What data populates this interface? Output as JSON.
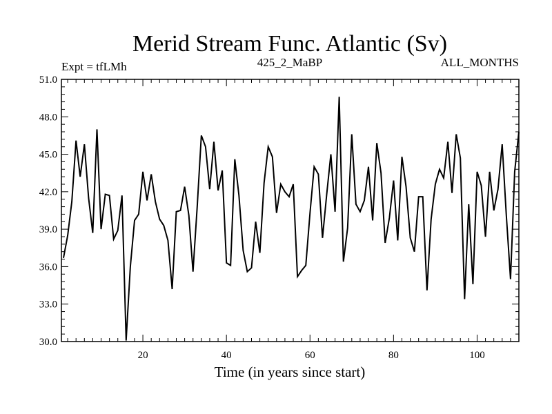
{
  "chart_data": {
    "type": "line",
    "title": "Merid Stream Func. Atlantic (Sv)",
    "subtitle_left": "Expt = tfLMh",
    "subtitle_center": "425_2_MaBP",
    "subtitle_right": "ALL_MONTHS",
    "xlabel": "Time (in years since start)",
    "ylabel": "",
    "xlim": [
      0.5,
      110
    ],
    "ylim": [
      30.0,
      51.0
    ],
    "x_ticks": [
      20,
      40,
      60,
      80,
      100
    ],
    "x_tick_labels": [
      "20",
      "40",
      "60",
      "80",
      "100"
    ],
    "y_ticks": [
      30.0,
      33.0,
      36.0,
      39.0,
      42.0,
      45.0,
      48.0,
      51.0
    ],
    "y_tick_labels": [
      "30.0",
      "33.0",
      "36.0",
      "39.0",
      "42.0",
      "45.0",
      "48.0",
      "51.0"
    ],
    "series": [
      {
        "name": "Merid Stream Func. Atlantic",
        "x": [
          1,
          2,
          3,
          4,
          5,
          6,
          7,
          8,
          9,
          10,
          11,
          12,
          13,
          14,
          15,
          16,
          17,
          18,
          19,
          20,
          21,
          22,
          23,
          24,
          25,
          26,
          27,
          28,
          29,
          30,
          31,
          32,
          33,
          34,
          35,
          36,
          37,
          38,
          39,
          40,
          41,
          42,
          43,
          44,
          45,
          46,
          47,
          48,
          49,
          50,
          51,
          52,
          53,
          54,
          55,
          56,
          57,
          58,
          59,
          60,
          61,
          62,
          63,
          64,
          65,
          66,
          67,
          68,
          69,
          70,
          71,
          72,
          73,
          74,
          75,
          76,
          77,
          78,
          79,
          80,
          81,
          82,
          83,
          84,
          85,
          86,
          87,
          88,
          89,
          90,
          91,
          92,
          93,
          94,
          95,
          96,
          97,
          98,
          99,
          100,
          101,
          102,
          103,
          104,
          105,
          106,
          107,
          108,
          109,
          110
        ],
        "values": [
          36.7,
          38.5,
          41.2,
          46.1,
          43.2,
          45.8,
          41.5,
          38.7,
          47.0,
          39.0,
          41.8,
          41.7,
          38.2,
          38.9,
          41.7,
          30.1,
          36.0,
          39.7,
          40.2,
          43.6,
          41.3,
          43.4,
          41.2,
          39.8,
          39.3,
          38.1,
          34.2,
          40.4,
          40.5,
          42.4,
          40.1,
          35.6,
          40.8,
          46.5,
          45.6,
          42.2,
          46.0,
          42.1,
          43.7,
          36.3,
          36.1,
          44.6,
          41.7,
          37.3,
          35.6,
          35.9,
          39.6,
          37.1,
          42.7,
          45.6,
          44.8,
          40.3,
          42.6,
          42.0,
          41.6,
          42.6,
          35.2,
          35.7,
          36.1,
          40.3,
          44.0,
          43.4,
          38.3,
          41.8,
          45.0,
          40.4,
          49.6,
          36.4,
          39.1,
          46.6,
          41.0,
          40.4,
          41.3,
          44.0,
          39.7,
          45.9,
          43.5,
          37.9,
          39.9,
          42.9,
          38.1,
          44.8,
          42.4,
          38.3,
          37.2,
          41.6,
          41.6,
          34.1,
          39.8,
          42.6,
          43.8,
          43.1,
          46.0,
          41.9,
          46.6,
          44.7,
          33.4,
          41.0,
          34.6,
          43.6,
          42.5,
          38.4,
          43.6,
          40.5,
          42.2,
          45.8,
          40.1,
          35.0,
          43.6,
          46.8
        ]
      }
    ]
  }
}
